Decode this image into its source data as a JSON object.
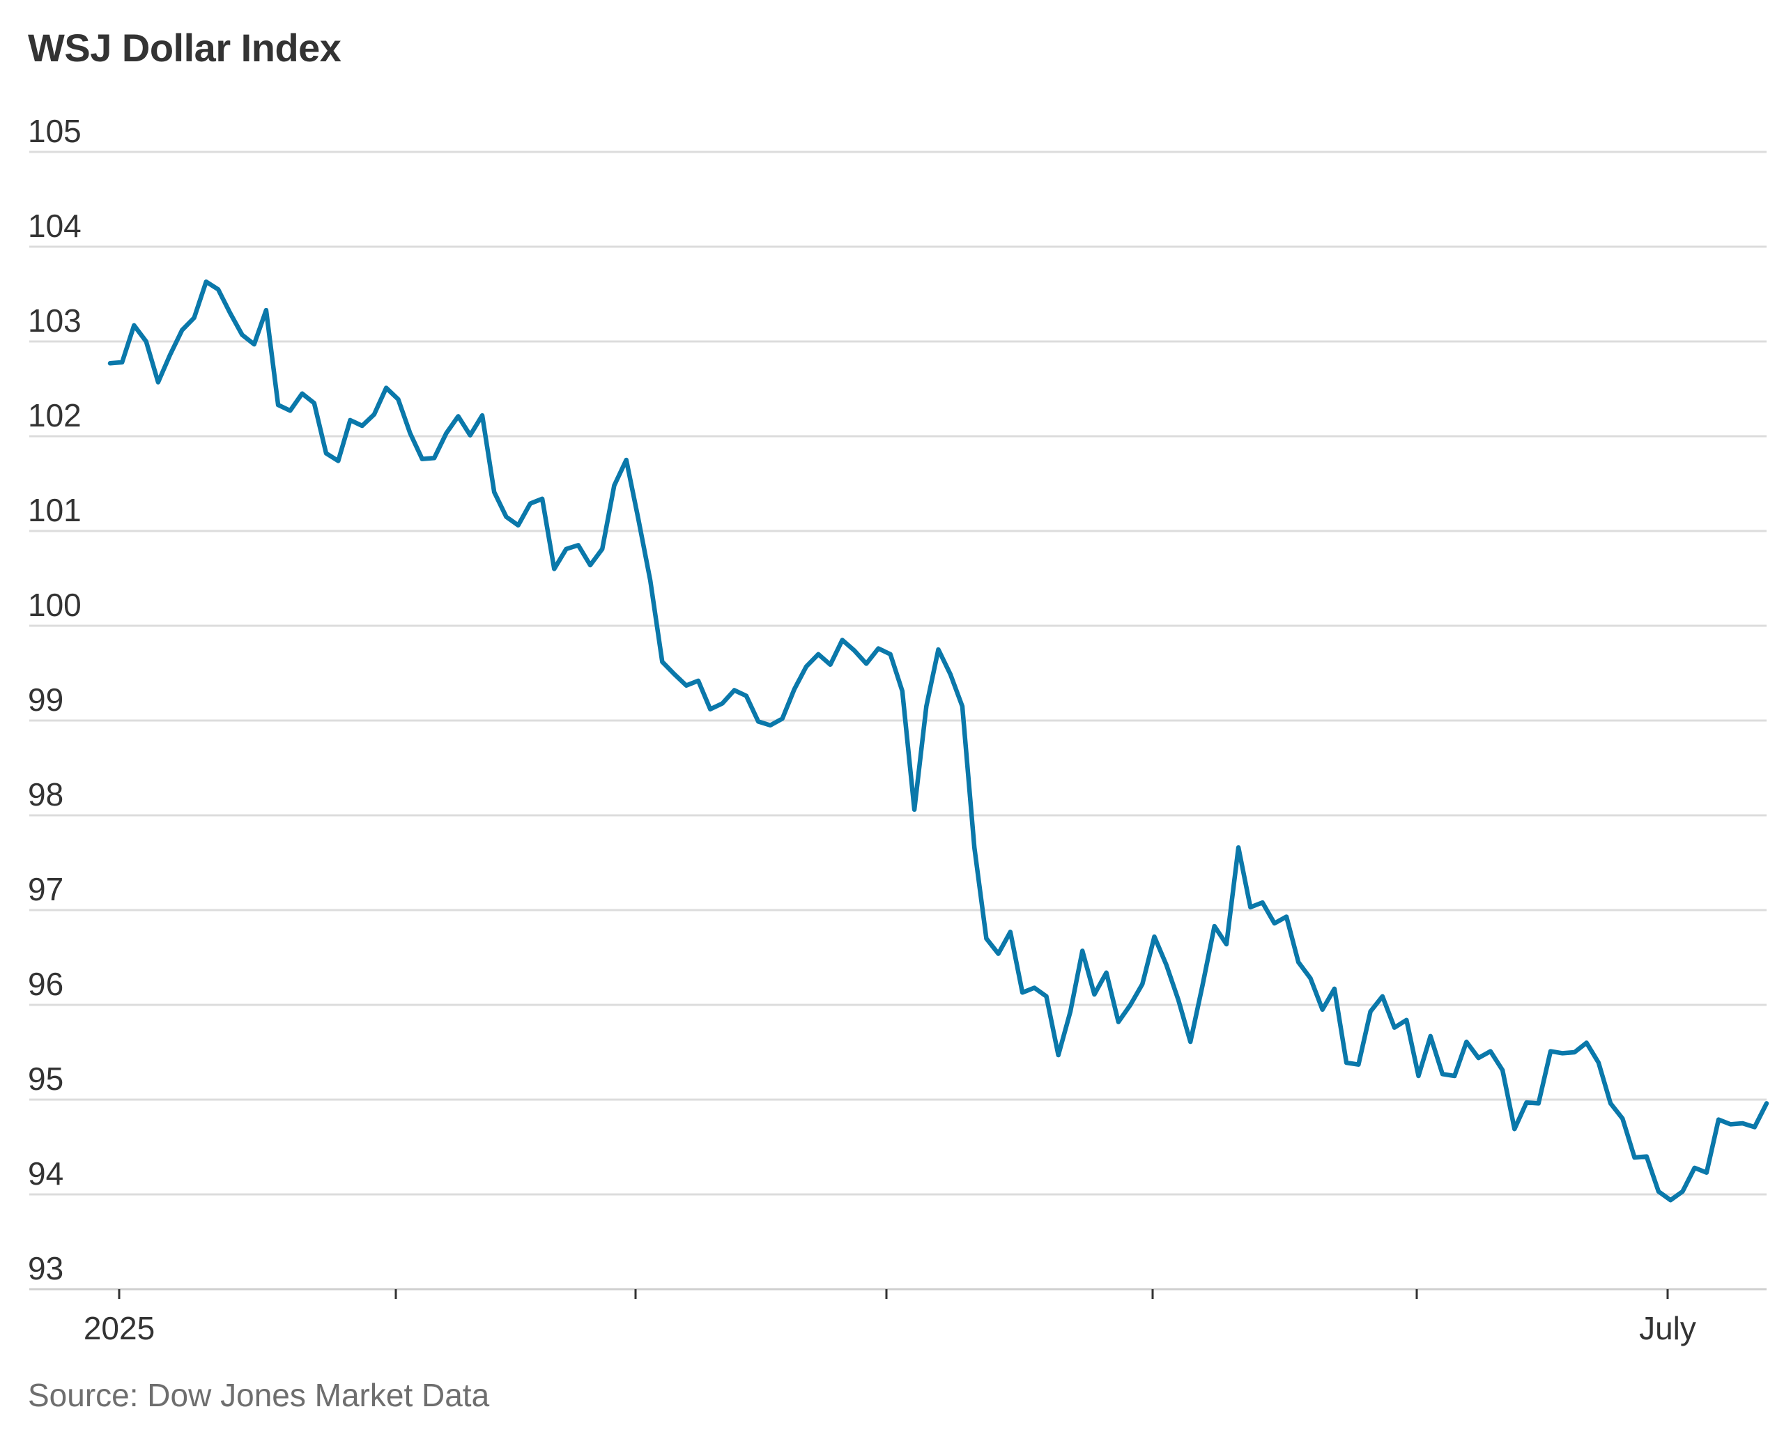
{
  "title": "WSJ Dollar Index",
  "source": "Source: Dow Jones Market Data",
  "colors": {
    "line": "#0a78aa",
    "grid": "#dcdcdc",
    "text": "#333333",
    "source": "#6e6e6e"
  },
  "chart_data": {
    "type": "line",
    "title": "WSJ Dollar Index",
    "xlabel": "",
    "ylabel": "",
    "ylim": [
      93,
      105
    ],
    "yticks": [
      105,
      104,
      103,
      102,
      101,
      100,
      99,
      98,
      97,
      96,
      95,
      94,
      93
    ],
    "grid": true,
    "xtick_labels": [
      "2025",
      "",
      "",
      "",
      "",
      "",
      "July"
    ],
    "series": [
      {
        "values": [
          102.77,
          102.78,
          103.17,
          103.0,
          102.57,
          102.86,
          103.12,
          103.25,
          103.63,
          103.55,
          103.3,
          103.07,
          102.97,
          103.33,
          102.33,
          102.27,
          102.45,
          102.35,
          101.82,
          101.74,
          102.17,
          102.11,
          102.23,
          102.51,
          102.39,
          102.03,
          101.76,
          101.77,
          102.03,
          102.21,
          102.01,
          102.22,
          101.41,
          101.15,
          101.06,
          101.29,
          101.34,
          100.6,
          100.81,
          100.85,
          100.64,
          100.81,
          101.48,
          101.75,
          101.13,
          100.48,
          99.62,
          99.49,
          99.37,
          99.42,
          99.12,
          99.18,
          99.32,
          99.26,
          98.99,
          98.95,
          99.02,
          99.33,
          99.57,
          99.7,
          99.59,
          99.85,
          99.74,
          99.6,
          99.76,
          99.7,
          99.31,
          98.06,
          99.15,
          99.75,
          99.49,
          99.15,
          97.66,
          96.7,
          96.54,
          96.77,
          96.13,
          96.18,
          96.09,
          95.47,
          95.93,
          96.57,
          96.11,
          96.34,
          95.82,
          96.0,
          96.22,
          96.72,
          96.42,
          96.05,
          95.61,
          96.2,
          96.83,
          96.64,
          97.66,
          97.03,
          97.08,
          96.86,
          96.93,
          96.45,
          96.28,
          95.95,
          96.17,
          95.39,
          95.37,
          95.93,
          96.09,
          95.76,
          95.84,
          95.25,
          95.67,
          95.27,
          95.25,
          95.61,
          95.44,
          95.51,
          95.31,
          94.69,
          94.97,
          94.96,
          95.51,
          95.49,
          95.5,
          95.6,
          95.39,
          94.96,
          94.8,
          94.39,
          94.4,
          94.03,
          93.94,
          94.03,
          94.28,
          94.23,
          94.79,
          94.74,
          94.75,
          94.71,
          94.96
        ]
      }
    ]
  }
}
